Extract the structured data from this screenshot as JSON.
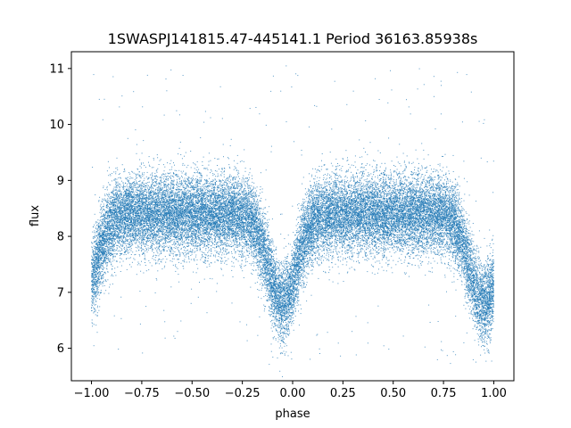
{
  "chart_data": {
    "type": "scatter",
    "title": "1SWASPJ141815.47-445141.1 Period 36163.85938s",
    "xlabel": "phase",
    "ylabel": "flux",
    "xlim": [
      -1.1,
      1.1
    ],
    "ylim": [
      5.42,
      11.3
    ],
    "xticks": [
      -1.0,
      -0.75,
      -0.5,
      -0.25,
      0.0,
      0.25,
      0.5,
      0.75,
      1.0
    ],
    "xtick_labels": [
      "−1.00",
      "−0.75",
      "−0.50",
      "−0.25",
      "0.00",
      "0.25",
      "0.50",
      "0.75",
      "1.00"
    ],
    "yticks": [
      6,
      7,
      8,
      9,
      10,
      11
    ],
    "ytick_labels": [
      "6",
      "7",
      "8",
      "9",
      "10",
      "11"
    ],
    "grid": false,
    "legend": "none",
    "color": "#1f77b4",
    "series": [
      {
        "phase_range": [
          -1.0,
          1.0
        ],
        "baseline_flux": 8.4,
        "flux_scatter": 0.35,
        "dips": [
          {
            "phase": -0.05,
            "min_flux": 6.8
          },
          {
            "phase": 0.95,
            "min_flux": 6.8
          }
        ],
        "approx_points": 30000
      }
    ]
  }
}
